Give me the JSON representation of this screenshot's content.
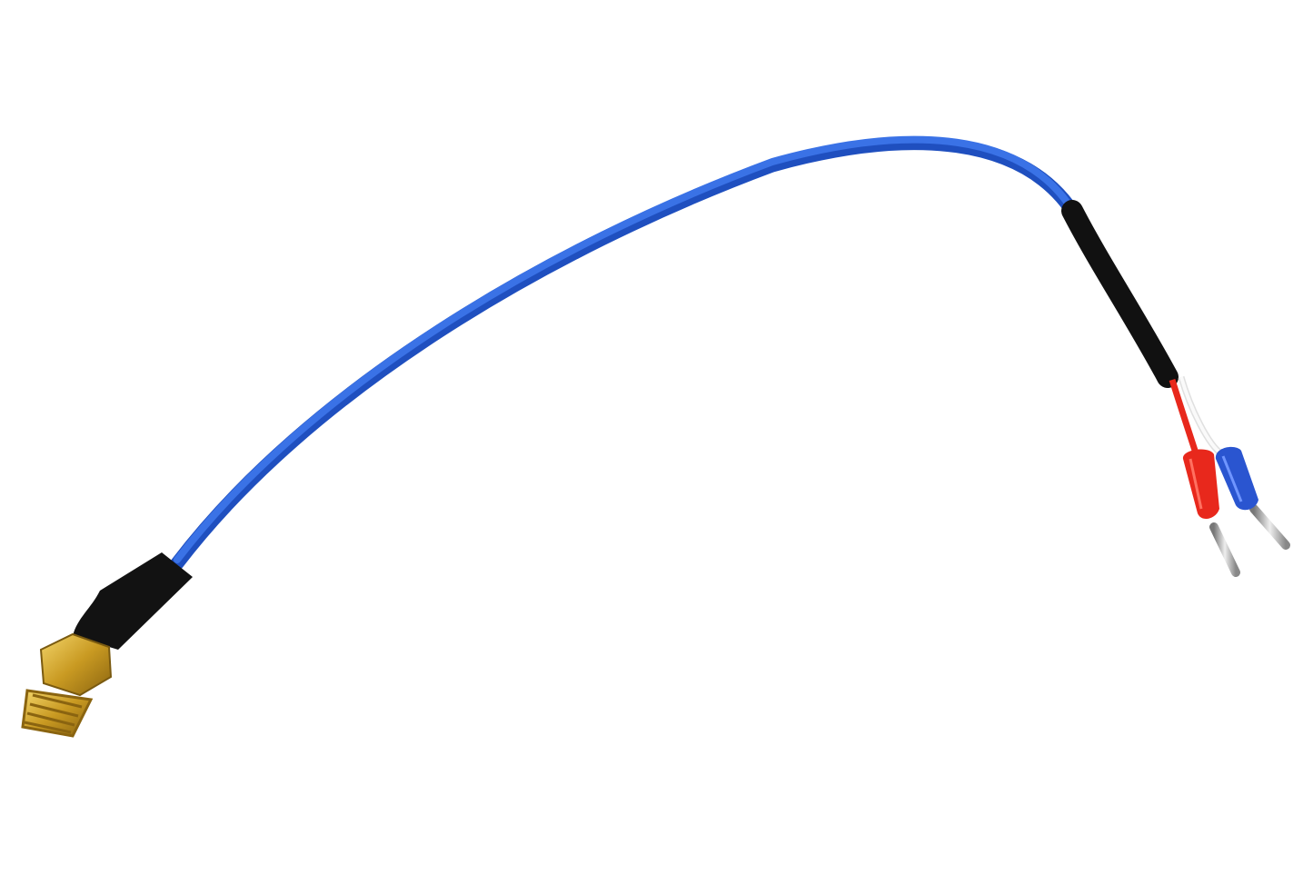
{
  "colors": {
    "background": "#ffffff",
    "cable": "#2a62d8",
    "cable_highlight": "#5a8cf0",
    "heat_shrink": "#111111",
    "brass": "#d2a630",
    "red_wire": "#e8281c",
    "white_wire": "#f4f4f4",
    "blue_ferrule": "#2a55d0",
    "pin": "#b8b8b8"
  },
  "icons": [
    "cable-image"
  ]
}
